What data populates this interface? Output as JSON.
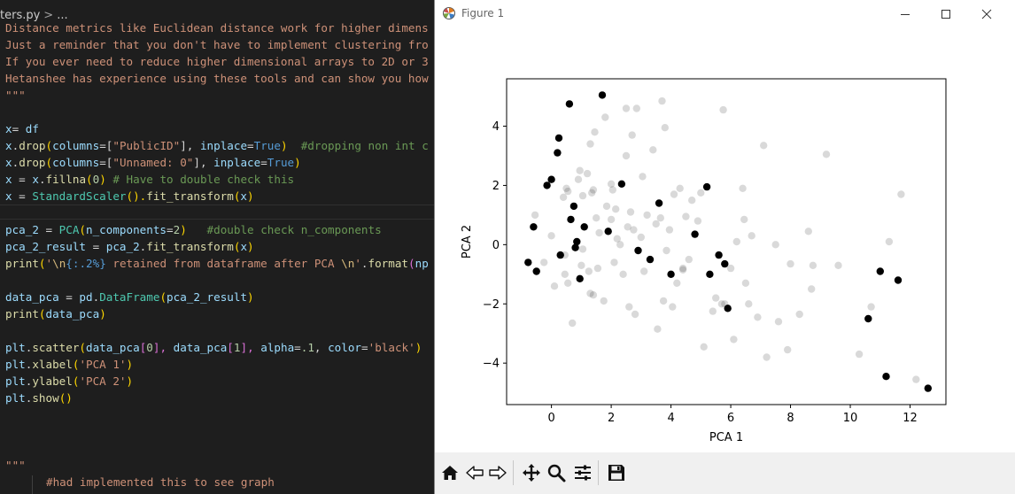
{
  "editor": {
    "breadcrumb_file": "ters.py",
    "breadcrumb_sep": ">",
    "breadcrumb_tail": "...",
    "lines": {
      "l0": "Distance metrics like Euclidean distance work for higher dimens",
      "l1": "Just a reminder that you don't have to implement clustering fro",
      "l2": "If you ever need to reduce higher dimensional arrays to 2D or 3",
      "l3": "Hetanshee has experience using these tools and can show you how",
      "l4": "\"\"\"",
      "l6_a": "x",
      "l6_b": "= ",
      "l6_c": "df",
      "l7_a": "x",
      "l7_b": ".",
      "l7_c": "drop",
      "l7_d": "(",
      "l7_e": "columns",
      "l7_f": "=[",
      "l7_g": "\"PublicID\"",
      "l7_h": "], ",
      "l7_i": "inplace",
      "l7_j": "=",
      "l7_k": "True",
      "l7_l": ")  ",
      "l7_m": "#dropping non int c",
      "l8_a": "x",
      "l8_b": ".",
      "l8_c": "drop",
      "l8_d": "(",
      "l8_e": "columns",
      "l8_f": "=[",
      "l8_g": "\"Unnamed: 0\"",
      "l8_h": "], ",
      "l8_i": "inplace",
      "l8_j": "=",
      "l8_k": "True",
      "l8_l": ")",
      "l9_a": "x",
      "l9_b": " = ",
      "l9_c": "x",
      "l9_d": ".",
      "l9_e": "fillna",
      "l9_f": "(",
      "l9_g": "0",
      "l9_h": ") ",
      "l9_i": "# Have to double check this",
      "l10_a": "x",
      "l10_b": " = ",
      "l10_c": "StandardScaler",
      "l10_d": "().",
      "l10_e": "fit_transform",
      "l10_f": "(",
      "l10_g": "x",
      "l10_h": ")",
      "l12_a": "pca_2",
      "l12_b": " = ",
      "l12_c": "PCA",
      "l12_d": "(",
      "l12_e": "n_components",
      "l12_f": "=",
      "l12_g": "2",
      "l12_h": ")   ",
      "l12_i": "#double check n_components",
      "l13_a": "pca_2_result",
      "l13_b": " = ",
      "l13_c": "pca_2",
      "l13_d": ".",
      "l13_e": "fit_transform",
      "l13_f": "(",
      "l13_g": "x",
      "l13_h": ")",
      "l14_a": "print",
      "l14_b": "(",
      "l14_c": "'",
      "l14_d": "\\n",
      "l14_e": "{:.2%}",
      "l14_f": " retained from dataframe after PCA ",
      "l14_g": "\\n",
      "l14_h": "'",
      "l14_i": ".",
      "l14_j": "format",
      "l14_k": "(",
      "l14_l": "np",
      "l16_a": "data_pca",
      "l16_b": " = ",
      "l16_c": "pd",
      "l16_d": ".",
      "l16_e": "DataFrame",
      "l16_f": "(",
      "l16_g": "pca_2_result",
      "l16_h": ")",
      "l17_a": "print",
      "l17_b": "(",
      "l17_c": "data_pca",
      "l17_d": ")",
      "l19_a": "plt",
      "l19_b": ".",
      "l19_c": "scatter",
      "l19_d": "(",
      "l19_e": "data_pca",
      "l19_f": "[",
      "l19_g": "0",
      "l19_h": "], ",
      "l19_i": "data_pca",
      "l19_j": "[",
      "l19_k": "1",
      "l19_l": "], ",
      "l19_m": "alpha",
      "l19_n": "=",
      "l19_o": ".1",
      "l19_p": ", ",
      "l19_q": "color",
      "l19_r": "=",
      "l19_s": "'black'",
      "l19_t": ")",
      "l20_a": "plt",
      "l20_b": ".",
      "l20_c": "xlabel",
      "l20_d": "(",
      "l20_e": "'PCA 1'",
      "l20_f": ")",
      "l21_a": "plt",
      "l21_b": ".",
      "l21_c": "ylabel",
      "l21_d": "(",
      "l21_e": "'PCA 2'",
      "l21_f": ")",
      "l22_a": "plt",
      "l22_b": ".",
      "l22_c": "show",
      "l22_d": "()",
      "l26": "\"\"\"",
      "l27": "#had implemented this to see graph"
    }
  },
  "figure": {
    "window_title": "Figure 1",
    "window_icon": "matplotlib-logo-icon",
    "controls": {
      "minimize": "minimize-icon",
      "maximize": "maximize-icon",
      "close": "close-icon"
    },
    "toolbar": [
      "home-icon",
      "back-arrow-icon",
      "forward-arrow-icon",
      "pan-move-icon",
      "zoom-magnifier-icon",
      "configure-subplots-icon",
      "save-floppy-icon"
    ]
  },
  "chart_data": {
    "type": "scatter",
    "title": "",
    "xlabel": "PCA 1",
    "ylabel": "PCA 2",
    "xlim": [
      -1.5,
      13.2
    ],
    "ylim": [
      -5.4,
      5.6
    ],
    "xticks": [
      0,
      2,
      4,
      6,
      8,
      10,
      12
    ],
    "yticks": [
      -4,
      -2,
      0,
      2,
      4
    ],
    "tick_labels_x": [
      "0",
      "2",
      "4",
      "6",
      "8",
      "10",
      "12"
    ],
    "tick_labels_y": [
      "−4",
      "−2",
      "0",
      "2",
      "4"
    ],
    "grid": false,
    "color": "#000000",
    "alpha": 0.1,
    "points": [
      [
        -0.78,
        -0.6
      ],
      [
        -0.6,
        0.6
      ],
      [
        -0.55,
        1.0
      ],
      [
        -0.5,
        -0.9
      ],
      [
        -0.15,
        2.0
      ],
      [
        0.0,
        2.2
      ],
      [
        0.0,
        0.3
      ],
      [
        0.1,
        -1.4
      ],
      [
        0.2,
        3.1
      ],
      [
        0.25,
        3.6
      ],
      [
        0.3,
        -0.35
      ],
      [
        0.4,
        1.6
      ],
      [
        0.45,
        -1.0
      ],
      [
        0.5,
        1.9
      ],
      [
        0.55,
        -1.3
      ],
      [
        0.6,
        4.75
      ],
      [
        0.65,
        0.85
      ],
      [
        0.7,
        -2.65
      ],
      [
        0.75,
        1.3
      ],
      [
        0.8,
        -0.1
      ],
      [
        0.85,
        0.1
      ],
      [
        0.9,
        2.2
      ],
      [
        0.95,
        -1.15
      ],
      [
        1.0,
        -0.7
      ],
      [
        1.05,
        1.65
      ],
      [
        1.1,
        0.6
      ],
      [
        1.2,
        2.4
      ],
      [
        1.25,
        -0.9
      ],
      [
        1.3,
        3.4
      ],
      [
        1.35,
        1.75
      ],
      [
        1.4,
        -1.7
      ],
      [
        1.45,
        3.8
      ],
      [
        1.5,
        0.9
      ],
      [
        1.55,
        -0.8
      ],
      [
        1.6,
        0.4
      ],
      [
        1.7,
        5.05
      ],
      [
        1.75,
        -1.9
      ],
      [
        1.8,
        4.3
      ],
      [
        1.85,
        1.3
      ],
      [
        1.9,
        0.45
      ],
      [
        2.0,
        2.05
      ],
      [
        2.05,
        1.85
      ],
      [
        2.1,
        -0.6
      ],
      [
        2.15,
        1.2
      ],
      [
        2.2,
        0.2
      ],
      [
        2.3,
        0.0
      ],
      [
        2.35,
        2.05
      ],
      [
        2.4,
        -1.0
      ],
      [
        2.5,
        3.0
      ],
      [
        2.55,
        0.6
      ],
      [
        2.6,
        -2.1
      ],
      [
        2.65,
        1.1
      ],
      [
        2.7,
        3.7
      ],
      [
        2.75,
        0.5
      ],
      [
        2.8,
        -2.35
      ],
      [
        2.85,
        4.6
      ],
      [
        2.9,
        -0.2
      ],
      [
        3.0,
        0.25
      ],
      [
        3.05,
        2.3
      ],
      [
        3.1,
        -0.9
      ],
      [
        3.2,
        1.0
      ],
      [
        3.3,
        -0.5
      ],
      [
        3.4,
        3.2
      ],
      [
        3.5,
        0.7
      ],
      [
        3.55,
        -2.85
      ],
      [
        3.6,
        1.4
      ],
      [
        3.7,
        4.85
      ],
      [
        3.75,
        -1.9
      ],
      [
        3.8,
        3.95
      ],
      [
        3.85,
        -0.2
      ],
      [
        3.95,
        0.5
      ],
      [
        4.0,
        -1.0
      ],
      [
        4.05,
        -2.1
      ],
      [
        4.1,
        1.7
      ],
      [
        4.2,
        -1.3
      ],
      [
        4.3,
        1.9
      ],
      [
        4.4,
        -0.8
      ],
      [
        4.5,
        0.95
      ],
      [
        4.6,
        -0.5
      ],
      [
        4.7,
        1.5
      ],
      [
        4.8,
        0.35
      ],
      [
        4.9,
        0.8
      ],
      [
        5.0,
        1.75
      ],
      [
        5.1,
        -3.45
      ],
      [
        5.2,
        1.95
      ],
      [
        5.3,
        -1.0
      ],
      [
        5.4,
        -2.25
      ],
      [
        5.5,
        -1.8
      ],
      [
        5.6,
        -0.35
      ],
      [
        5.7,
        -2.0
      ],
      [
        5.8,
        -0.65
      ],
      [
        5.9,
        -2.15
      ],
      [
        6.0,
        -0.8
      ],
      [
        6.1,
        -3.2
      ],
      [
        6.2,
        0.1
      ],
      [
        6.4,
        1.9
      ],
      [
        6.5,
        -1.3
      ],
      [
        6.6,
        -2.0
      ],
      [
        6.7,
        0.3
      ],
      [
        6.9,
        -2.45
      ],
      [
        7.1,
        3.35
      ],
      [
        7.2,
        -3.8
      ],
      [
        7.5,
        0.0
      ],
      [
        7.6,
        -2.6
      ],
      [
        7.9,
        -3.55
      ],
      [
        8.0,
        -0.65
      ],
      [
        8.3,
        -2.35
      ],
      [
        8.6,
        0.45
      ],
      [
        8.7,
        -1.5
      ],
      [
        8.75,
        -0.7
      ],
      [
        9.2,
        3.05
      ],
      [
        9.6,
        -0.7
      ],
      [
        10.3,
        -3.7
      ],
      [
        10.6,
        -2.5
      ],
      [
        10.7,
        -2.1
      ],
      [
        11.0,
        -0.9
      ],
      [
        11.2,
        -4.45
      ],
      [
        11.3,
        0.1
      ],
      [
        11.6,
        -1.2
      ],
      [
        11.7,
        1.7
      ],
      [
        12.2,
        -4.55
      ],
      [
        12.6,
        -4.85
      ],
      [
        0.45,
        -0.35
      ],
      [
        1.3,
        -1.65
      ],
      [
        2.5,
        4.6
      ],
      [
        3.65,
        0.9
      ],
      [
        5.75,
        4.55
      ],
      [
        4.4,
        -0.85
      ],
      [
        1.05,
        -0.15
      ],
      [
        2.0,
        0.85
      ],
      [
        0.95,
        2.5
      ],
      [
        5.8,
        -2.0
      ],
      [
        6.45,
        0.85
      ],
      [
        1.4,
        1.85
      ],
      [
        0.55,
        1.8
      ],
      [
        -0.25,
        -0.6
      ]
    ]
  }
}
